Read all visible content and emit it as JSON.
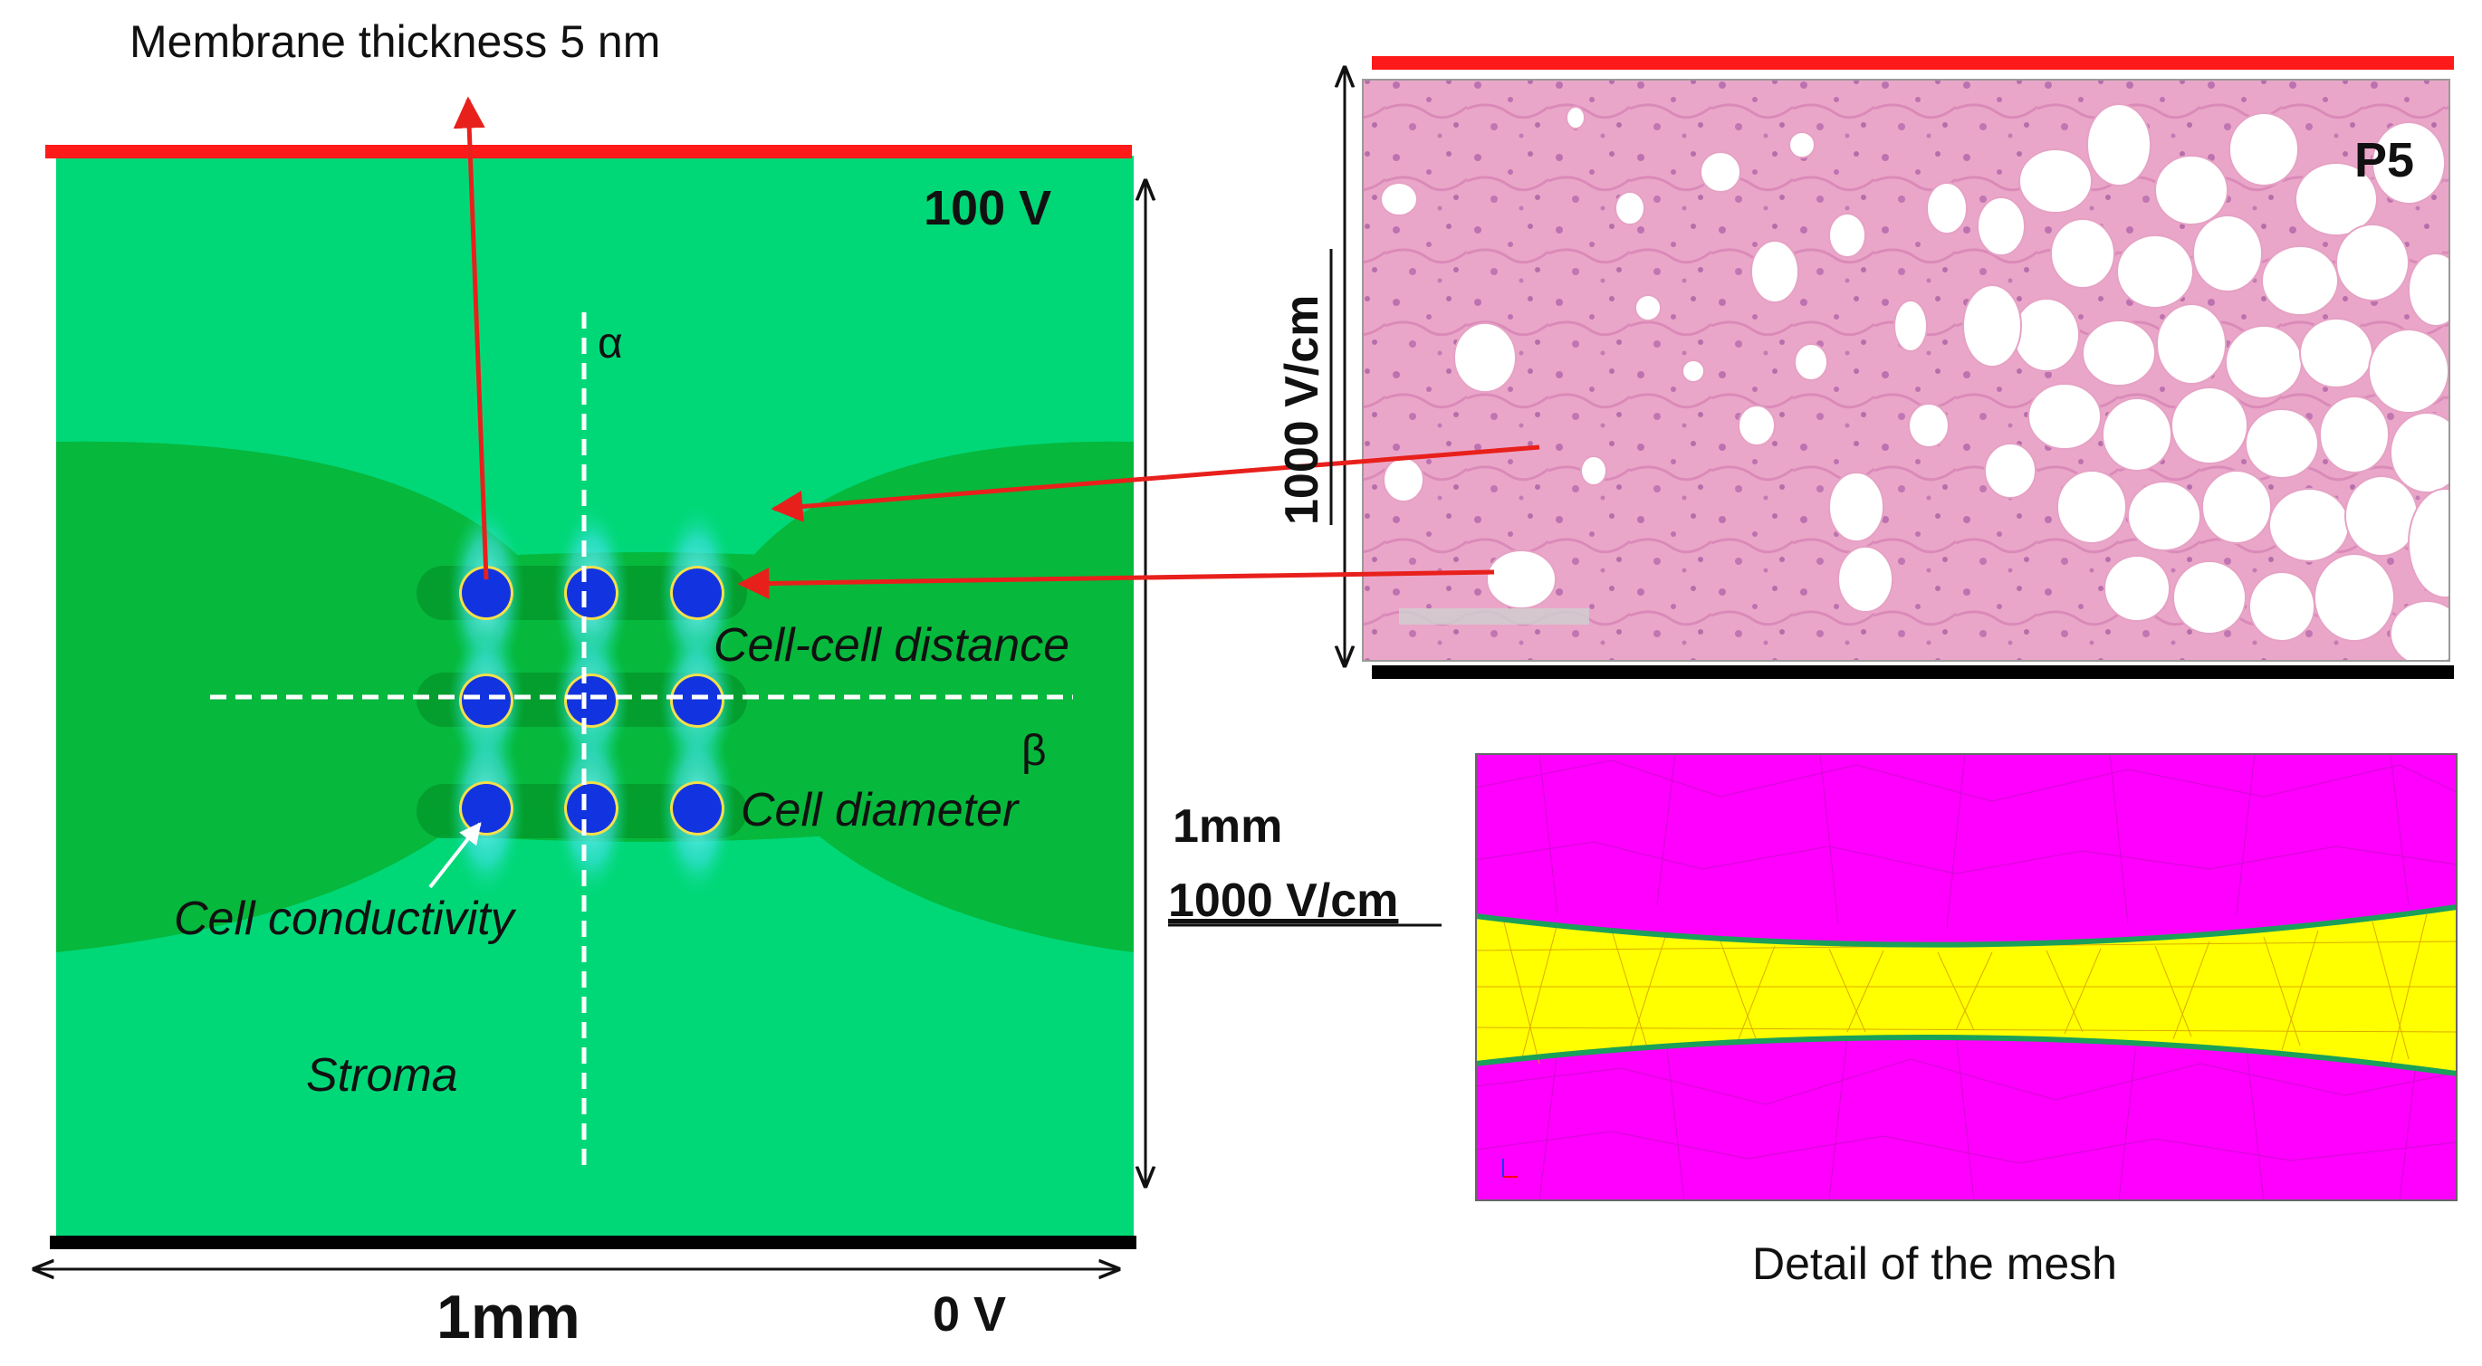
{
  "labels": {
    "membrane": "Membrane thickness 5 nm",
    "top_voltage": "100 V",
    "bottom_voltage": "0 V",
    "alpha": "α",
    "beta": "β",
    "cell_cell_distance": "Cell-cell distance",
    "cell_diameter": "Cell diameter",
    "cell_conductivity": "Cell conductivity",
    "stroma": "Stroma",
    "width_left": "1mm",
    "height_right": "1mm",
    "field_right": "1000 V/cm",
    "field_histology": "1000 V/cm",
    "histology_tag": "P5",
    "mesh_caption": "Detail of the mesh"
  },
  "colors": {
    "electrode_top": "#ff1a1a",
    "electrode_bottom": "#000000",
    "domain": "#00d878",
    "domain_dark": "#06b83c",
    "cell": "#1234e0",
    "arrow": "#e8201c",
    "mesh_bg": "#ff00ff",
    "mesh_channel": "#ffff00",
    "mesh_edge": "#1aa05a"
  }
}
